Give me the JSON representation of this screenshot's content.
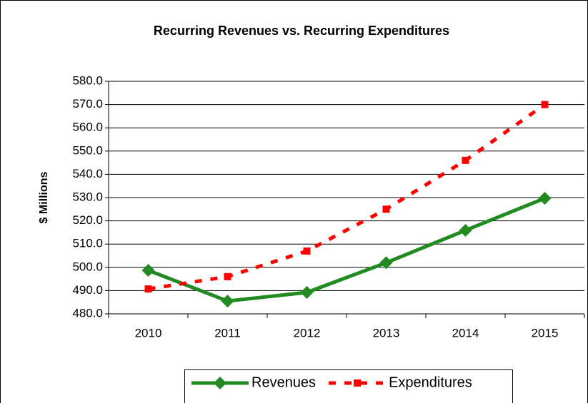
{
  "chart_data": {
    "type": "line",
    "title": "Recurring Revenues vs. Recurring Expenditures",
    "y_label": "$ Millions",
    "categories": [
      "2010",
      "2011",
      "2012",
      "2013",
      "2014",
      "2015"
    ],
    "series": [
      {
        "name": "Revenues",
        "color": "#218a21",
        "style": "solid",
        "marker": "diamond",
        "values": [
          498.7,
          485.5,
          489.2,
          502.0,
          515.9,
          529.7
        ]
      },
      {
        "name": "Expenditures",
        "color": "#ff0000",
        "style": "dashed",
        "marker": "square",
        "values": [
          490.7,
          496.0,
          507.0,
          525.0,
          546.0,
          570.0
        ]
      }
    ],
    "ylim": [
      480,
      580
    ],
    "yticks": [
      {
        "value": 480,
        "label": "480.0"
      },
      {
        "value": 490,
        "label": "490.0"
      },
      {
        "value": 500,
        "label": "500.0"
      },
      {
        "value": 510,
        "label": "510.0"
      },
      {
        "value": 520,
        "label": "520.0"
      },
      {
        "value": 530,
        "label": "530.0"
      },
      {
        "value": 540,
        "label": "540.0"
      },
      {
        "value": 550,
        "label": "550.0"
      },
      {
        "value": 560,
        "label": "560.0"
      },
      {
        "value": 570,
        "label": "570.0"
      },
      {
        "value": 580,
        "label": "580.0"
      }
    ],
    "grid": true,
    "legend": "bottom"
  }
}
